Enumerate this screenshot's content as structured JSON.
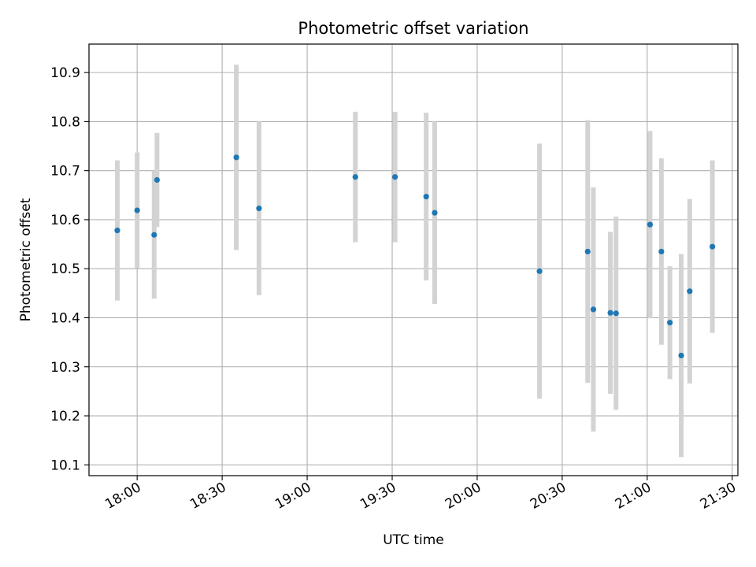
{
  "chart_data": {
    "type": "scatter",
    "title": "Photometric offset variation",
    "xlabel": "UTC time",
    "ylabel": "Photometric offset",
    "x_unit": "UTC time of day (HH:MM)",
    "xlim": [
      "17:43",
      "21:32"
    ],
    "ylim": [
      10.078,
      10.958
    ],
    "x_ticks": [
      "18:00",
      "18:30",
      "19:00",
      "19:30",
      "20:00",
      "20:30",
      "21:00",
      "21:30"
    ],
    "y_ticks": [
      10.1,
      10.2,
      10.3,
      10.4,
      10.5,
      10.6,
      10.7,
      10.8,
      10.9
    ],
    "y_tick_labels": [
      "10.1",
      "10.2",
      "10.3",
      "10.4",
      "10.5",
      "10.6",
      "10.7",
      "10.8",
      "10.9"
    ],
    "grid": true,
    "colors": {
      "point": "#1f77b4",
      "errorbar": "#d3d3d3",
      "grid": "#b0b0b0",
      "axes": "#000000"
    },
    "series": [
      {
        "points": [
          {
            "x": "17:53",
            "y": 10.578,
            "err": 0.143
          },
          {
            "x": "18:00",
            "y": 10.619,
            "err": 0.118
          },
          {
            "x": "18:06",
            "y": 10.569,
            "err": 0.13
          },
          {
            "x": "18:07",
            "y": 10.681,
            "err": 0.096
          },
          {
            "x": "18:35",
            "y": 10.727,
            "err": 0.189
          },
          {
            "x": "18:43",
            "y": 10.623,
            "err": 0.177
          },
          {
            "x": "19:17",
            "y": 10.687,
            "err": 0.133
          },
          {
            "x": "19:31",
            "y": 10.687,
            "err": 0.133
          },
          {
            "x": "19:42",
            "y": 10.647,
            "err": 0.171
          },
          {
            "x": "19:45",
            "y": 10.614,
            "err": 0.186
          },
          {
            "x": "20:22",
            "y": 10.495,
            "err": 0.26
          },
          {
            "x": "20:39",
            "y": 10.535,
            "err": 0.268
          },
          {
            "x": "20:41",
            "y": 10.417,
            "err": 0.249
          },
          {
            "x": "20:47",
            "y": 10.41,
            "err": 0.165
          },
          {
            "x": "20:49",
            "y": 10.409,
            "err": 0.197
          },
          {
            "x": "21:01",
            "y": 10.59,
            "err": 0.191
          },
          {
            "x": "21:05",
            "y": 10.535,
            "err": 0.19
          },
          {
            "x": "21:08",
            "y": 10.39,
            "err": 0.115
          },
          {
            "x": "21:12",
            "y": 10.323,
            "err": 0.207
          },
          {
            "x": "21:15",
            "y": 10.454,
            "err": 0.188
          },
          {
            "x": "21:23",
            "y": 10.545,
            "err": 0.176
          }
        ]
      }
    ]
  }
}
